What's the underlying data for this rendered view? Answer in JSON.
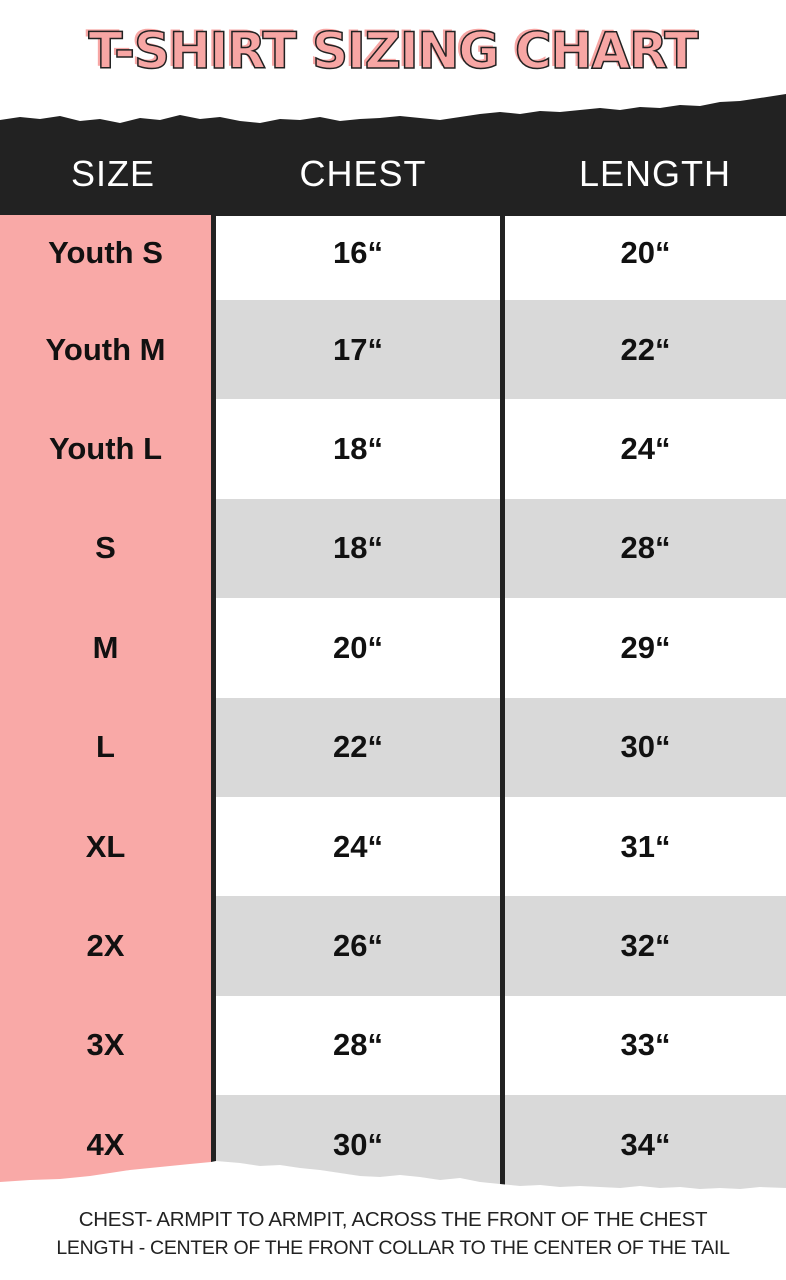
{
  "title": "T-SHIRT SIZING CHART",
  "colors": {
    "accent_pink": "#f9a9a7",
    "header_dark": "#222222",
    "stripe_gray": "#d9d9d9"
  },
  "chart_data": {
    "type": "table",
    "title": "T-SHIRT SIZING CHART",
    "columns": [
      "SIZE",
      "CHEST",
      "LENGTH"
    ],
    "rows": [
      {
        "size": "Youth S",
        "chest": "16“",
        "length": "20“"
      },
      {
        "size": "Youth M",
        "chest": "17“",
        "length": "22“"
      },
      {
        "size": "Youth L",
        "chest": "18“",
        "length": "24“"
      },
      {
        "size": "S",
        "chest": "18“",
        "length": "28“"
      },
      {
        "size": "M",
        "chest": "20“",
        "length": "29“"
      },
      {
        "size": "L",
        "chest": "22“",
        "length": "30“"
      },
      {
        "size": "XL",
        "chest": "24“",
        "length": "31“"
      },
      {
        "size": "2X",
        "chest": "26“",
        "length": "32“"
      },
      {
        "size": "3X",
        "chest": "28“",
        "length": "33“"
      },
      {
        "size": "4X",
        "chest": "30“",
        "length": "34“"
      }
    ]
  },
  "footer": {
    "chest_note": "CHEST- ARMPIT TO ARMPIT, ACROSS THE FRONT OF THE CHEST",
    "length_note": "LENGTH - CENTER OF THE FRONT COLLAR TO THE CENTER OF THE TAIL"
  }
}
